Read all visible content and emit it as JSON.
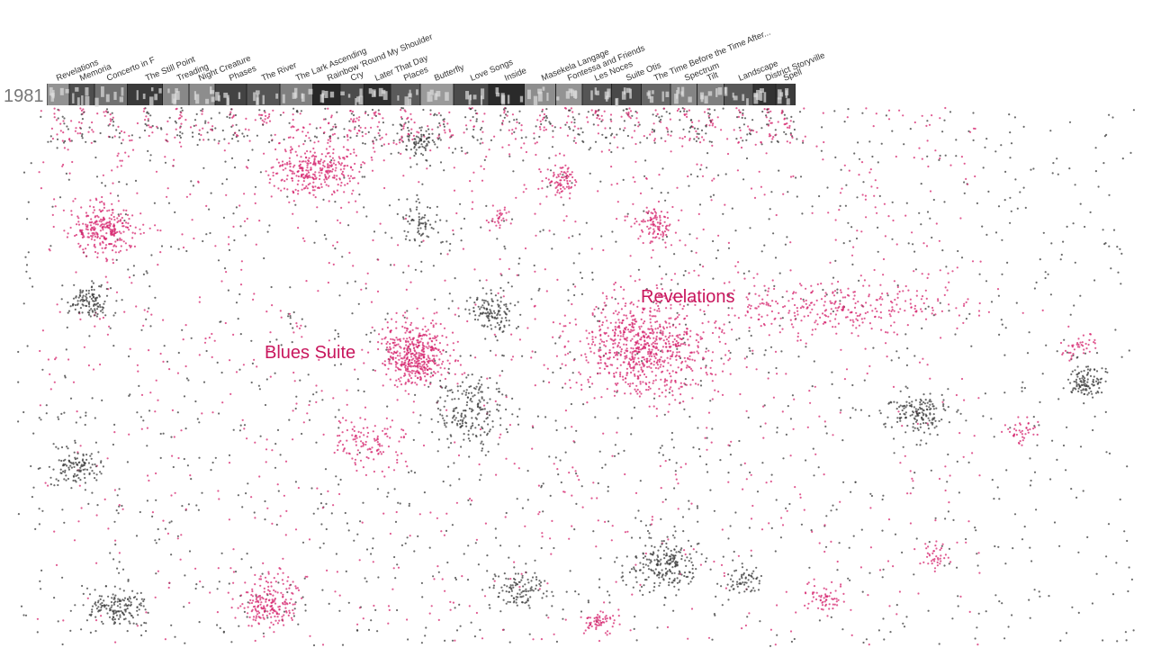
{
  "year": "1981",
  "works": [
    "Revelations",
    "Memoria",
    "Concerto in F",
    "The Still Point",
    "Treading",
    "Night Creature",
    "Phases",
    "The River",
    "The Lark Ascending",
    "Rainbow 'Round My Shoulder",
    "Cry",
    "Later That Day",
    "Places",
    "Butterfly",
    "Love Songs",
    "Inside",
    "Masekela Langage",
    "Fontessa and Friends",
    "Les Noces",
    "Suite Otis",
    "The Time Before the Time After...",
    "Spectrum",
    "Tilt",
    "Landscape",
    "District Storyville",
    "Spell"
  ],
  "annotations": [
    "Revelations",
    "Blues Suite"
  ]
}
